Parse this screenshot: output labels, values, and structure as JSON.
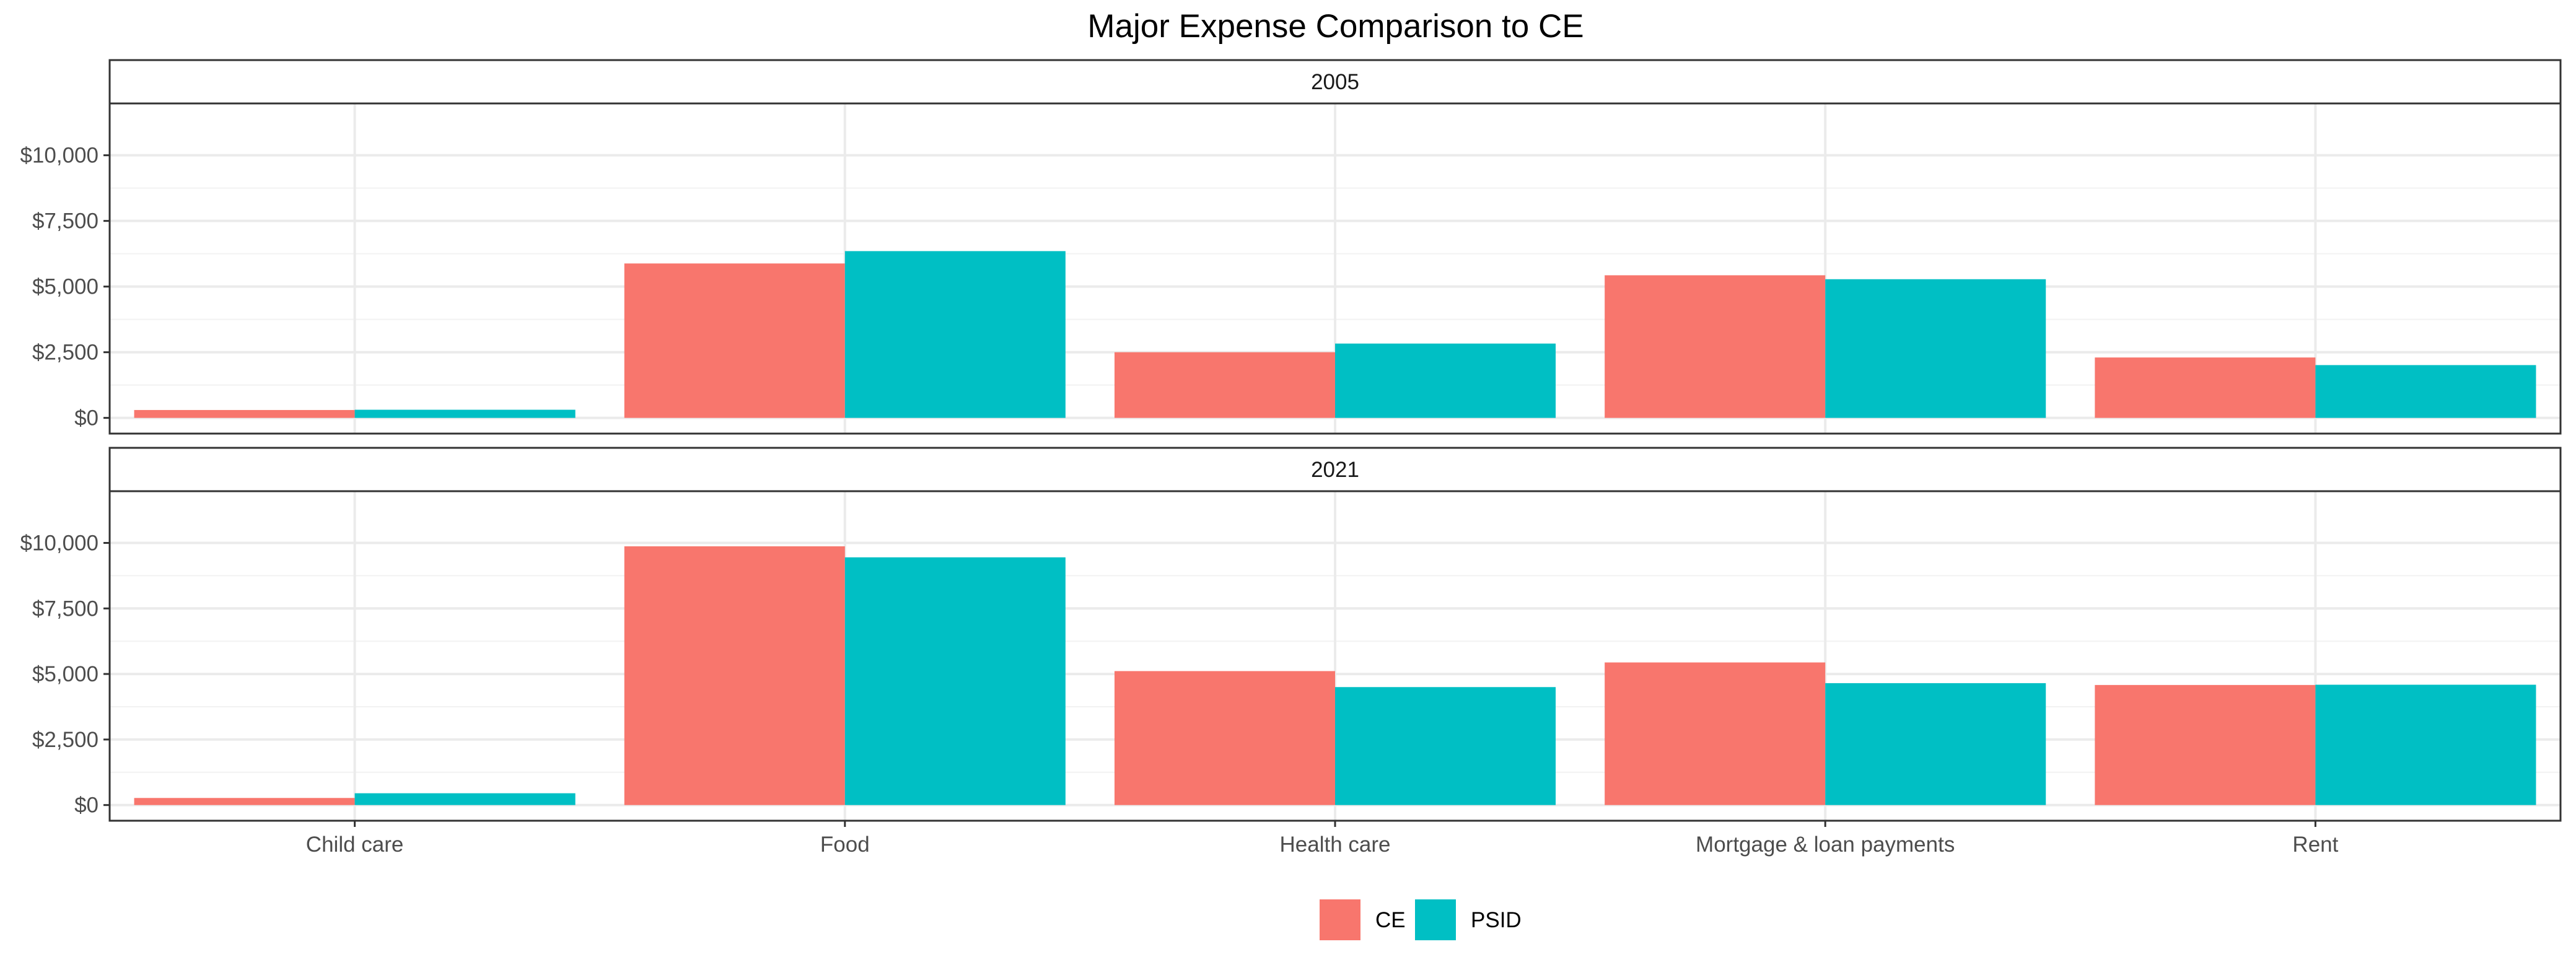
{
  "chart_data": {
    "type": "bar",
    "title": "Major Expense Comparison to CE",
    "xlabel": "",
    "ylabel": "",
    "ylim": [
      0,
      11500
    ],
    "yticks": [
      0,
      2500,
      5000,
      7500,
      10000
    ],
    "ytick_labels": [
      "$0",
      "$2,500",
      "$5,000",
      "$7,500",
      "$10,000"
    ],
    "categories": [
      "Child care",
      "Food",
      "Health care",
      "Mortgage & loan payments",
      "Rent"
    ],
    "grid": true,
    "legend_position": "bottom",
    "colors": {
      "CE": "#F8766D",
      "PSID": "#00BFC4"
    },
    "panels": [
      {
        "label": "2005",
        "series": [
          {
            "name": "CE",
            "values": [
              300,
              5880,
              2500,
              5430,
              2300
            ]
          },
          {
            "name": "PSID",
            "values": [
              310,
              6350,
              2830,
              5280,
              2010
            ]
          }
        ]
      },
      {
        "label": "2021",
        "series": [
          {
            "name": "CE",
            "values": [
              270,
              9870,
              5110,
              5440,
              4580
            ]
          },
          {
            "name": "PSID",
            "values": [
              450,
              9450,
              4500,
              4650,
              4590
            ]
          }
        ]
      }
    ]
  }
}
